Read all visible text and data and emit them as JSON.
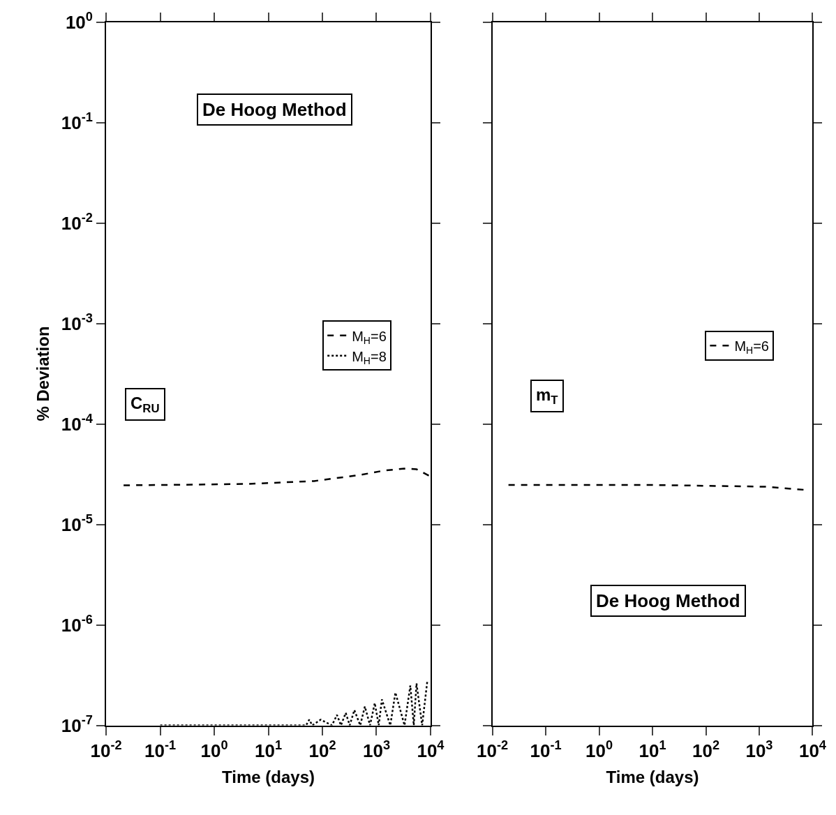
{
  "chart_data": [
    {
      "type": "line",
      "xlabel": "Time (days)",
      "ylabel": "% Deviation",
      "log": "xy",
      "legend": "right",
      "xlim": [
        0.01,
        10000
      ],
      "ylim": [
        1e-07,
        1
      ],
      "xticks": [
        {
          "value": 0.01,
          "label": "10$^{-2}$"
        },
        {
          "value": 0.1,
          "label": "10$^{-1}$"
        },
        {
          "value": 1,
          "label": "10$^{0}$"
        },
        {
          "value": 10,
          "label": "10$^{1}$"
        },
        {
          "value": 100,
          "label": "10$^{2}$"
        },
        {
          "value": 1000,
          "label": "10$^{3}$"
        },
        {
          "value": 10000,
          "label": "10$^{4}$"
        }
      ],
      "yticks": [
        {
          "value": 1e-07,
          "label": "10$^{-7}$"
        },
        {
          "value": 1e-06,
          "label": "10$^{-6}$"
        },
        {
          "value": 1e-05,
          "label": "10$^{-5}$"
        },
        {
          "value": 0.0001,
          "label": "10$^{-4}$"
        },
        {
          "value": 0.001,
          "label": "10$^{-3}$"
        },
        {
          "value": 0.01,
          "label": "10$^{-2}$"
        },
        {
          "value": 0.1,
          "label": "10$^{-1}$"
        },
        {
          "value": 1,
          "label": "10$^{0}$"
        }
      ],
      "annotations": [
        "De Hoog Method",
        "C$_{RU}$"
      ],
      "series": [
        {
          "name": "M$_{H}$=6",
          "color": "#000000",
          "line_style": "dashed",
          "x": [
            0.021,
            0.3,
            4.4,
            70,
            510,
            1360,
            3300,
            5500,
            9300
          ],
          "values": [
            2.45e-05,
            2.48e-05,
            2.53e-05,
            2.7e-05,
            3.11e-05,
            3.43e-05,
            3.59e-05,
            3.54e-05,
            3.06e-05
          ]
        },
        {
          "name": "M$_{H}$=8",
          "color": "#000000",
          "line_style": "dotted",
          "x": [
            0.1,
            50,
            57,
            65,
            93,
            150,
            186,
            220,
            270,
            320,
            390,
            500,
            610,
            760,
            930,
            1100,
            1260,
            1800,
            2240,
            3300,
            4230,
            4900,
            5500,
            7000,
            8700
          ],
          "values": [
            1e-07,
            1e-07,
            1.14e-07,
            1e-07,
            1.14e-07,
            1e-07,
            1.27e-07,
            1e-07,
            1.33e-07,
            1e-07,
            1.42e-07,
            1e-07,
            1.54e-07,
            1e-07,
            1.67e-07,
            1e-07,
            1.81e-07,
            1e-07,
            2.12e-07,
            1e-07,
            2.49e-07,
            1e-07,
            2.61e-07,
            1e-07,
            2.74e-07
          ]
        }
      ]
    },
    {
      "type": "line",
      "xlabel": "Time (days)",
      "log": "xy",
      "legend": "right",
      "tick_labels": "x",
      "xlim": [
        0.01,
        10000
      ],
      "ylim": [
        1e-07,
        1
      ],
      "xticks": [
        {
          "value": 0.01,
          "label": "10$^{-2}$"
        },
        {
          "value": 0.1,
          "label": "10$^{-1}$"
        },
        {
          "value": 1,
          "label": "10$^{0}$"
        },
        {
          "value": 10,
          "label": "10$^{1}$"
        },
        {
          "value": 100,
          "label": "10$^{2}$"
        },
        {
          "value": 1000,
          "label": "10$^{3}$"
        },
        {
          "value": 10000,
          "label": "10$^{4}$"
        }
      ],
      "yticks": [
        {
          "value": 1e-07,
          "label": "10$^{-7}$"
        },
        {
          "value": 1e-06,
          "label": "10$^{-6}$"
        },
        {
          "value": 1e-05,
          "label": "10$^{-5}$"
        },
        {
          "value": 0.0001,
          "label": "10$^{-4}$"
        },
        {
          "value": 0.001,
          "label": "10$^{-3}$"
        },
        {
          "value": 0.01,
          "label": "10$^{-2}$"
        },
        {
          "value": 0.1,
          "label": "10$^{-1}$"
        },
        {
          "value": 1,
          "label": "10$^{0}$"
        }
      ],
      "annotations": [
        "m$_{T}$",
        "De Hoog Method"
      ],
      "series": [
        {
          "name": "M$_{H}$=6",
          "color": "#000000",
          "line_style": "dashed",
          "x": [
            0.02,
            9.3,
            186,
            1400,
            8500
          ],
          "values": [
            2.47e-05,
            2.47e-05,
            2.41e-05,
            2.37e-05,
            2.19e-05
          ]
        }
      ]
    }
  ]
}
